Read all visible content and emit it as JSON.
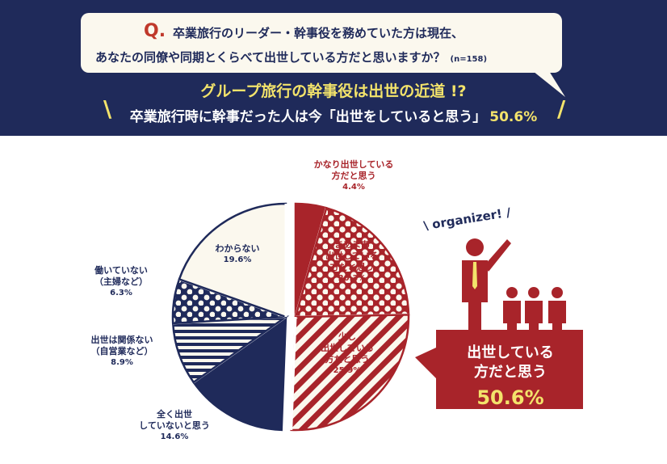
{
  "question": {
    "q_mark": "Q.",
    "line1": "卒業旅行のリーダー・幹事役を務めていた方は現在、",
    "line2": "あなたの同僚や同期とくらべて出世している方だと思いますか？",
    "sample": "(n=158)"
  },
  "headline": "グループ旅行の幹事役は出世の近道 !?",
  "subline": {
    "text": "卒業旅行時に幹事だった人は今「出世をしていると思う」",
    "pct": "50.6%"
  },
  "slash_marks": [
    "\\",
    "/"
  ],
  "chart_data": {
    "type": "pie",
    "exploded": true,
    "slices": [
      {
        "label": "かなり出世している方だと思う",
        "value": 4.4,
        "value_label": "4.4%",
        "color": "#a8242a",
        "pattern": "solid"
      },
      {
        "label": "まあまあ出世している方だと思う",
        "value": 20.3,
        "value_label": "20.3%",
        "color": "#a8242a",
        "pattern": "dots"
      },
      {
        "label": "少し出世している方だと思う",
        "value": 25.9,
        "value_label": "25.9%",
        "color": "#a8242a",
        "pattern": "diagonal-stripes"
      },
      {
        "label": "全く出世していないと思う",
        "value": 14.6,
        "value_label": "14.6%",
        "color": "#1f2a5a",
        "pattern": "solid"
      },
      {
        "label": "出世は関係ない（自営業など）",
        "value": 8.9,
        "value_label": "8.9%",
        "color": "#1f2a5a",
        "pattern": "horizontal-stripes"
      },
      {
        "label": "働いていない（主婦など）",
        "value": 6.3,
        "value_label": "6.3%",
        "color": "#1f2a5a",
        "pattern": "dots"
      },
      {
        "label": "わからない",
        "value": 19.6,
        "value_label": "19.6%",
        "color": "#fbf8ee",
        "pattern": "solid"
      }
    ]
  },
  "labels": {
    "s0_a": "かなり出世している",
    "s0_b": "方だと思う",
    "s1_a": "まあまあ",
    "s1_b": "出世している",
    "s1_c": "方だと思う",
    "s2_a": "少し",
    "s2_b": "出世している",
    "s2_c": "方だと思う",
    "s3_a": "全く出世",
    "s3_b": "していないと思う",
    "s4_a": "出世は関係ない",
    "s4_b": "（自営業など）",
    "s5_a": "働いていない",
    "s5_b": "（主婦など）",
    "s6_a": "わからない"
  },
  "organizer_label": "\\ organizer! /",
  "callout": {
    "line1": "出世している",
    "line2": "方だと思う",
    "pct": "50.6%"
  },
  "colors": {
    "navy": "#1f2a5a",
    "red": "#a8242a",
    "cream": "#fbf8ee",
    "yellow": "#f3e36b"
  }
}
